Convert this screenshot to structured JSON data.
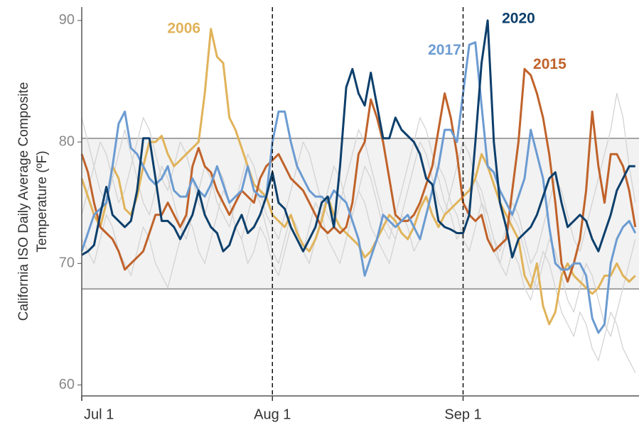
{
  "chart_data": {
    "type": "line",
    "ylabel": [
      "California ISO Daily Average Composite",
      "Temperature (ºF)"
    ],
    "x": [
      0,
      1,
      2,
      3,
      4,
      5,
      6,
      7,
      8,
      9,
      10,
      11,
      12,
      13,
      14,
      15,
      16,
      17,
      18,
      19,
      20,
      21,
      22,
      23,
      24,
      25,
      26,
      27,
      28,
      29,
      30,
      31,
      32,
      33,
      34,
      35,
      36,
      37,
      38,
      39,
      40,
      41,
      42,
      43,
      44,
      45,
      46,
      47,
      48,
      49,
      50,
      51,
      52,
      53,
      54,
      55,
      56,
      57,
      58,
      59,
      60,
      61,
      62,
      63,
      64,
      65,
      66,
      67,
      68,
      69,
      70,
      71,
      72,
      73,
      74,
      75,
      76,
      77,
      78,
      79,
      80,
      81,
      82,
      83,
      84,
      85,
      86,
      87,
      88,
      89,
      90
    ],
    "xlim": [
      0,
      90.6
    ],
    "xticks": [
      {
        "value": 0,
        "label": "Jul 1"
      },
      {
        "value": 31,
        "label": "Aug 1"
      },
      {
        "value": 62,
        "label": "Sep 1"
      }
    ],
    "vlines": [
      31,
      62
    ],
    "ylim": [
      59.1,
      91.1
    ],
    "yticks": [
      60,
      70,
      80,
      90
    ],
    "band": [
      67.9,
      80.3
    ],
    "series": [
      {
        "color": "#d3d3d3",
        "values": [
          82,
          80,
          78,
          76,
          75,
          77,
          79,
          81,
          79,
          77,
          75,
          74,
          76,
          78,
          77,
          75,
          73,
          72,
          74,
          76,
          78,
          77,
          75,
          74,
          73,
          75,
          77,
          79,
          78,
          76,
          74,
          73,
          72,
          74,
          76,
          78,
          80,
          79,
          77,
          75,
          74,
          73,
          75,
          77,
          79,
          81,
          80,
          78,
          76,
          74,
          73,
          72,
          74,
          76,
          78,
          80,
          79,
          77,
          75,
          74,
          76,
          78,
          80,
          79,
          77,
          75,
          73,
          71,
          70,
          72,
          74,
          73,
          71,
          69,
          68,
          70,
          72,
          71,
          69,
          67,
          66,
          68,
          70,
          69,
          67,
          65,
          64,
          66,
          68,
          70,
          72
        ]
      },
      {
        "color": "#d3d3d3",
        "values": [
          72,
          71,
          70,
          72,
          74,
          73,
          71,
          70,
          69,
          71,
          73,
          72,
          70,
          69,
          68,
          70,
          72,
          74,
          73,
          71,
          70,
          72,
          74,
          76,
          75,
          73,
          72,
          70,
          71,
          73,
          72,
          70,
          69,
          71,
          73,
          72,
          71,
          73,
          75,
          74,
          72,
          71,
          70,
          72,
          74,
          76,
          75,
          73,
          72,
          71,
          70,
          72,
          74,
          73,
          71,
          72,
          74,
          76,
          78,
          77,
          75,
          74,
          72,
          71,
          73,
          75,
          74,
          72,
          70,
          69,
          71,
          70,
          68,
          67,
          69,
          71,
          70,
          68,
          66,
          65,
          64,
          66,
          65,
          63,
          62,
          64,
          66,
          65,
          63,
          62,
          61
        ]
      },
      {
        "color": "#d3d3d3",
        "values": [
          74,
          76,
          78,
          80,
          79,
          77,
          75,
          76,
          78,
          80,
          82,
          81,
          79,
          77,
          76,
          78,
          80,
          79,
          77,
          75,
          74,
          76,
          78,
          77,
          75,
          73,
          72,
          74,
          76,
          75,
          73,
          71,
          70,
          72,
          74,
          73,
          71,
          70,
          72,
          74,
          76,
          78,
          77,
          75,
          74,
          76,
          78,
          77,
          75,
          73,
          72,
          74,
          76,
          78,
          80,
          82,
          81,
          79,
          77,
          75,
          74,
          72,
          73,
          75,
          77,
          76,
          74,
          72,
          71,
          73,
          75,
          74,
          72,
          70,
          71,
          73,
          75,
          77,
          76,
          74,
          72,
          71,
          73,
          75,
          77,
          79,
          81,
          84,
          82,
          78,
          75
        ]
      },
      {
        "name": "2006",
        "color": "#e0b35a",
        "values": [
          77,
          75.5,
          74,
          73,
          75,
          78,
          77,
          74.5,
          74,
          75.5,
          78,
          80,
          80,
          80.5,
          79,
          78,
          78.5,
          79,
          79.5,
          80,
          84,
          89.3,
          87,
          86.5,
          82,
          81,
          79.5,
          78,
          76.5,
          76,
          75.5,
          74,
          73.5,
          73,
          74,
          72.5,
          71.5,
          71,
          72,
          73.5,
          75.5,
          74,
          73,
          72.5,
          72,
          71.5,
          70.5,
          71,
          72,
          73,
          74,
          73.5,
          72.5,
          72,
          73,
          74.5,
          75.5,
          74,
          73,
          74,
          74.5,
          75,
          75.5,
          76,
          77,
          79,
          78,
          76.5,
          75,
          74,
          73,
          72,
          69,
          68,
          70,
          66.5,
          65,
          66,
          69,
          70,
          69,
          68.5,
          68,
          67.5,
          68,
          69,
          69,
          70,
          69,
          68.5,
          69
        ]
      },
      {
        "name": "2015",
        "color": "#c0622a",
        "values": [
          79,
          77.5,
          75,
          73,
          72.5,
          72,
          71,
          69.5,
          70,
          70.5,
          71,
          72.5,
          74,
          74,
          75,
          74,
          73,
          74,
          78,
          79.5,
          78,
          77.5,
          76,
          75,
          74,
          75,
          76,
          75.5,
          75,
          77,
          78,
          78.5,
          79,
          78,
          77,
          76.5,
          76,
          75,
          74,
          73,
          72.5,
          73,
          72.5,
          73,
          75,
          79,
          80,
          83.5,
          82,
          80,
          77,
          74,
          73.5,
          73.5,
          74,
          75,
          76.5,
          78,
          81,
          84,
          82,
          79,
          75,
          74,
          73.5,
          74,
          72,
          71,
          71.5,
          72,
          76,
          80,
          86,
          85.5,
          84,
          82,
          79,
          75,
          70,
          68.5,
          70,
          72,
          76,
          82.5,
          78,
          75,
          79,
          79,
          78,
          76,
          73
        ]
      },
      {
        "name": "2017",
        "color": "#6b9bd1",
        "values": [
          71,
          72.5,
          74,
          74.5,
          75,
          78,
          81.5,
          82.5,
          79.5,
          79,
          78,
          77,
          76.5,
          77,
          78,
          76,
          75.5,
          75.5,
          77,
          76,
          75.5,
          76.5,
          78,
          76.5,
          75,
          75.5,
          76,
          78,
          76,
          75.5,
          75.5,
          80,
          82.5,
          82.5,
          80,
          78,
          77,
          76,
          75.5,
          75.5,
          75,
          76,
          75.5,
          75,
          73.5,
          72,
          69,
          70.5,
          72,
          74,
          73.5,
          73,
          73.5,
          74,
          73,
          72,
          74,
          76,
          78,
          81,
          81,
          80,
          84,
          88,
          88.2,
          83,
          78,
          77.5,
          76,
          75,
          74,
          75.5,
          77,
          81,
          79,
          77,
          73,
          70,
          69.5,
          69.5,
          70,
          70,
          69,
          65.5,
          64.3,
          65,
          70,
          72,
          73,
          73.5,
          72.5
        ]
      },
      {
        "name": "2020",
        "color": "#0d3f6b",
        "values": [
          70.7,
          71,
          71.5,
          74,
          76.3,
          74,
          73.5,
          73,
          73.5,
          76,
          80.3,
          80.3,
          77,
          73.5,
          73.5,
          73,
          72,
          73,
          74,
          76,
          74,
          73,
          72.5,
          71,
          71.5,
          73,
          74,
          72.5,
          73,
          74,
          75.5,
          77.5,
          75,
          74.5,
          73,
          72,
          71,
          72,
          73,
          75,
          75.5,
          73,
          78,
          84.5,
          86,
          84,
          83,
          85.7,
          83,
          80.3,
          80.3,
          82,
          81,
          80.5,
          80,
          79,
          77,
          76.5,
          73.5,
          73,
          72.8,
          72.5,
          72.5,
          74,
          80,
          86.5,
          90,
          80,
          75,
          73,
          70.5,
          72,
          72.5,
          73,
          74,
          75.5,
          77,
          77.5,
          75,
          73,
          73.5,
          74,
          73.5,
          72,
          71,
          72.5,
          74,
          76,
          77,
          78,
          78
        ]
      }
    ]
  }
}
